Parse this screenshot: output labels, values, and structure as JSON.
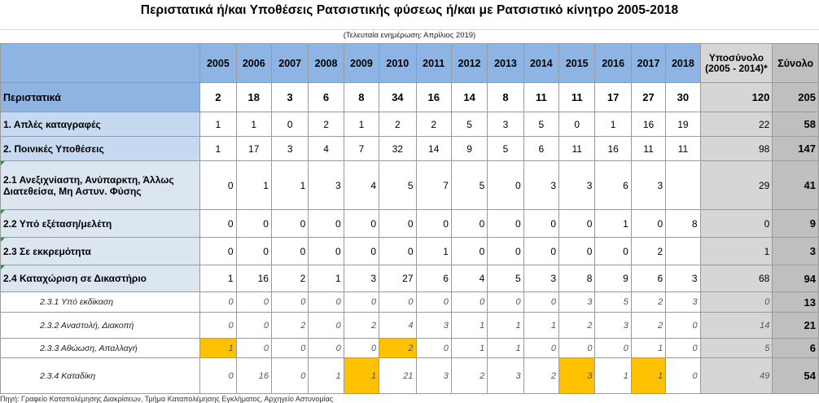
{
  "title": "Περιστατικά ή/και Υποθέσεις Ρατσιστικής φύσεως ή/και με Ρατσιστικό κίνητρο 2005-2018",
  "subtitle": "(Τελευταία ενημέρωση: Απρίλιος 2019)",
  "header": {
    "years": [
      "2005",
      "2006",
      "2007",
      "2008",
      "2009",
      "2010",
      "2011",
      "2012",
      "2013",
      "2014",
      "2015",
      "2016",
      "2017",
      "2018"
    ],
    "subtotal": "Υποσύνολο (2005 - 2014)*",
    "total": "Σύνολο"
  },
  "rows": [
    {
      "label": "Περιστατικά",
      "values": [
        "2",
        "18",
        "3",
        "6",
        "8",
        "34",
        "16",
        "14",
        "8",
        "11",
        "11",
        "17",
        "27",
        "30"
      ],
      "subtotal": "120",
      "total": "205"
    },
    {
      "label": "1.   Απλές καταγραφές",
      "values": [
        "1",
        "1",
        "0",
        "2",
        "1",
        "2",
        "2",
        "5",
        "3",
        "5",
        "0",
        "1",
        "16",
        "19"
      ],
      "subtotal": "22",
      "total": "58"
    },
    {
      "label": "2.   Ποινικές Υποθέσεις",
      "values": [
        "1",
        "17",
        "3",
        "4",
        "7",
        "32",
        "14",
        "9",
        "5",
        "6",
        "11",
        "16",
        "11",
        "11"
      ],
      "subtotal": "98",
      "total": "147"
    },
    {
      "label": "2.1  Ανεξιχνίαστη, Ανύπαρκτη, Άλλως Διατεθείσα, Μη Αστυν. Φύσης",
      "values": [
        "0",
        "1",
        "1",
        "3",
        "4",
        "5",
        "7",
        "5",
        "0",
        "3",
        "3",
        "6",
        "3",
        ""
      ],
      "subtotal": "29",
      "total": "41"
    },
    {
      "label": "2.2  Υπό εξέταση/μελέτη",
      "values": [
        "0",
        "0",
        "0",
        "0",
        "0",
        "0",
        "0",
        "0",
        "0",
        "0",
        "0",
        "1",
        "0",
        "8"
      ],
      "subtotal": "0",
      "total": "9"
    },
    {
      "label": "2.3  Σε εκκρεμότητα",
      "values": [
        "0",
        "0",
        "0",
        "0",
        "0",
        "0",
        "1",
        "0",
        "0",
        "0",
        "0",
        "0",
        "2",
        ""
      ],
      "subtotal": "1",
      "total": "3"
    },
    {
      "label": "2.4  Καταχώριση σε Δικαστήριο",
      "values": [
        "1",
        "16",
        "2",
        "1",
        "3",
        "27",
        "6",
        "4",
        "5",
        "3",
        "8",
        "9",
        "6",
        "3"
      ],
      "subtotal": "68",
      "total": "94"
    },
    {
      "label": "2.3.1  Υπό εκδίκαση",
      "values": [
        "0",
        "0",
        "0",
        "0",
        "0",
        "0",
        "0",
        "0",
        "0",
        "0",
        "3",
        "5",
        "2",
        "3"
      ],
      "subtotal": "0",
      "total": "13"
    },
    {
      "label": "2.3.2  Αναστολή, Διακοπή",
      "values": [
        "0",
        "0",
        "2",
        "0",
        "2",
        "4",
        "3",
        "1",
        "1",
        "1",
        "2",
        "3",
        "2",
        "0"
      ],
      "subtotal": "14",
      "total": "21"
    },
    {
      "label": "2.3.3  Αθώωση, Απαλλαγή",
      "values": [
        "1",
        "0",
        "0",
        "0",
        "0",
        "2",
        "0",
        "1",
        "1",
        "0",
        "0",
        "0",
        "1",
        "0"
      ],
      "subtotal": "5",
      "total": "6"
    },
    {
      "label": "2.3.4  Καταδίκη",
      "values": [
        "0",
        "16",
        "0",
        "1",
        "1",
        "21",
        "3",
        "2",
        "3",
        "2",
        "3",
        "1",
        "1",
        "0"
      ],
      "subtotal": "49",
      "total": "54"
    }
  ],
  "highlight_color": "#ffc000",
  "footer": "Πηγή: Γραφείο Καταπολέμησης Διακρίσεων, Τμήμα Καταπολέμησης Εγκλήματος, Αρχηγείο Αστυνομίας"
}
